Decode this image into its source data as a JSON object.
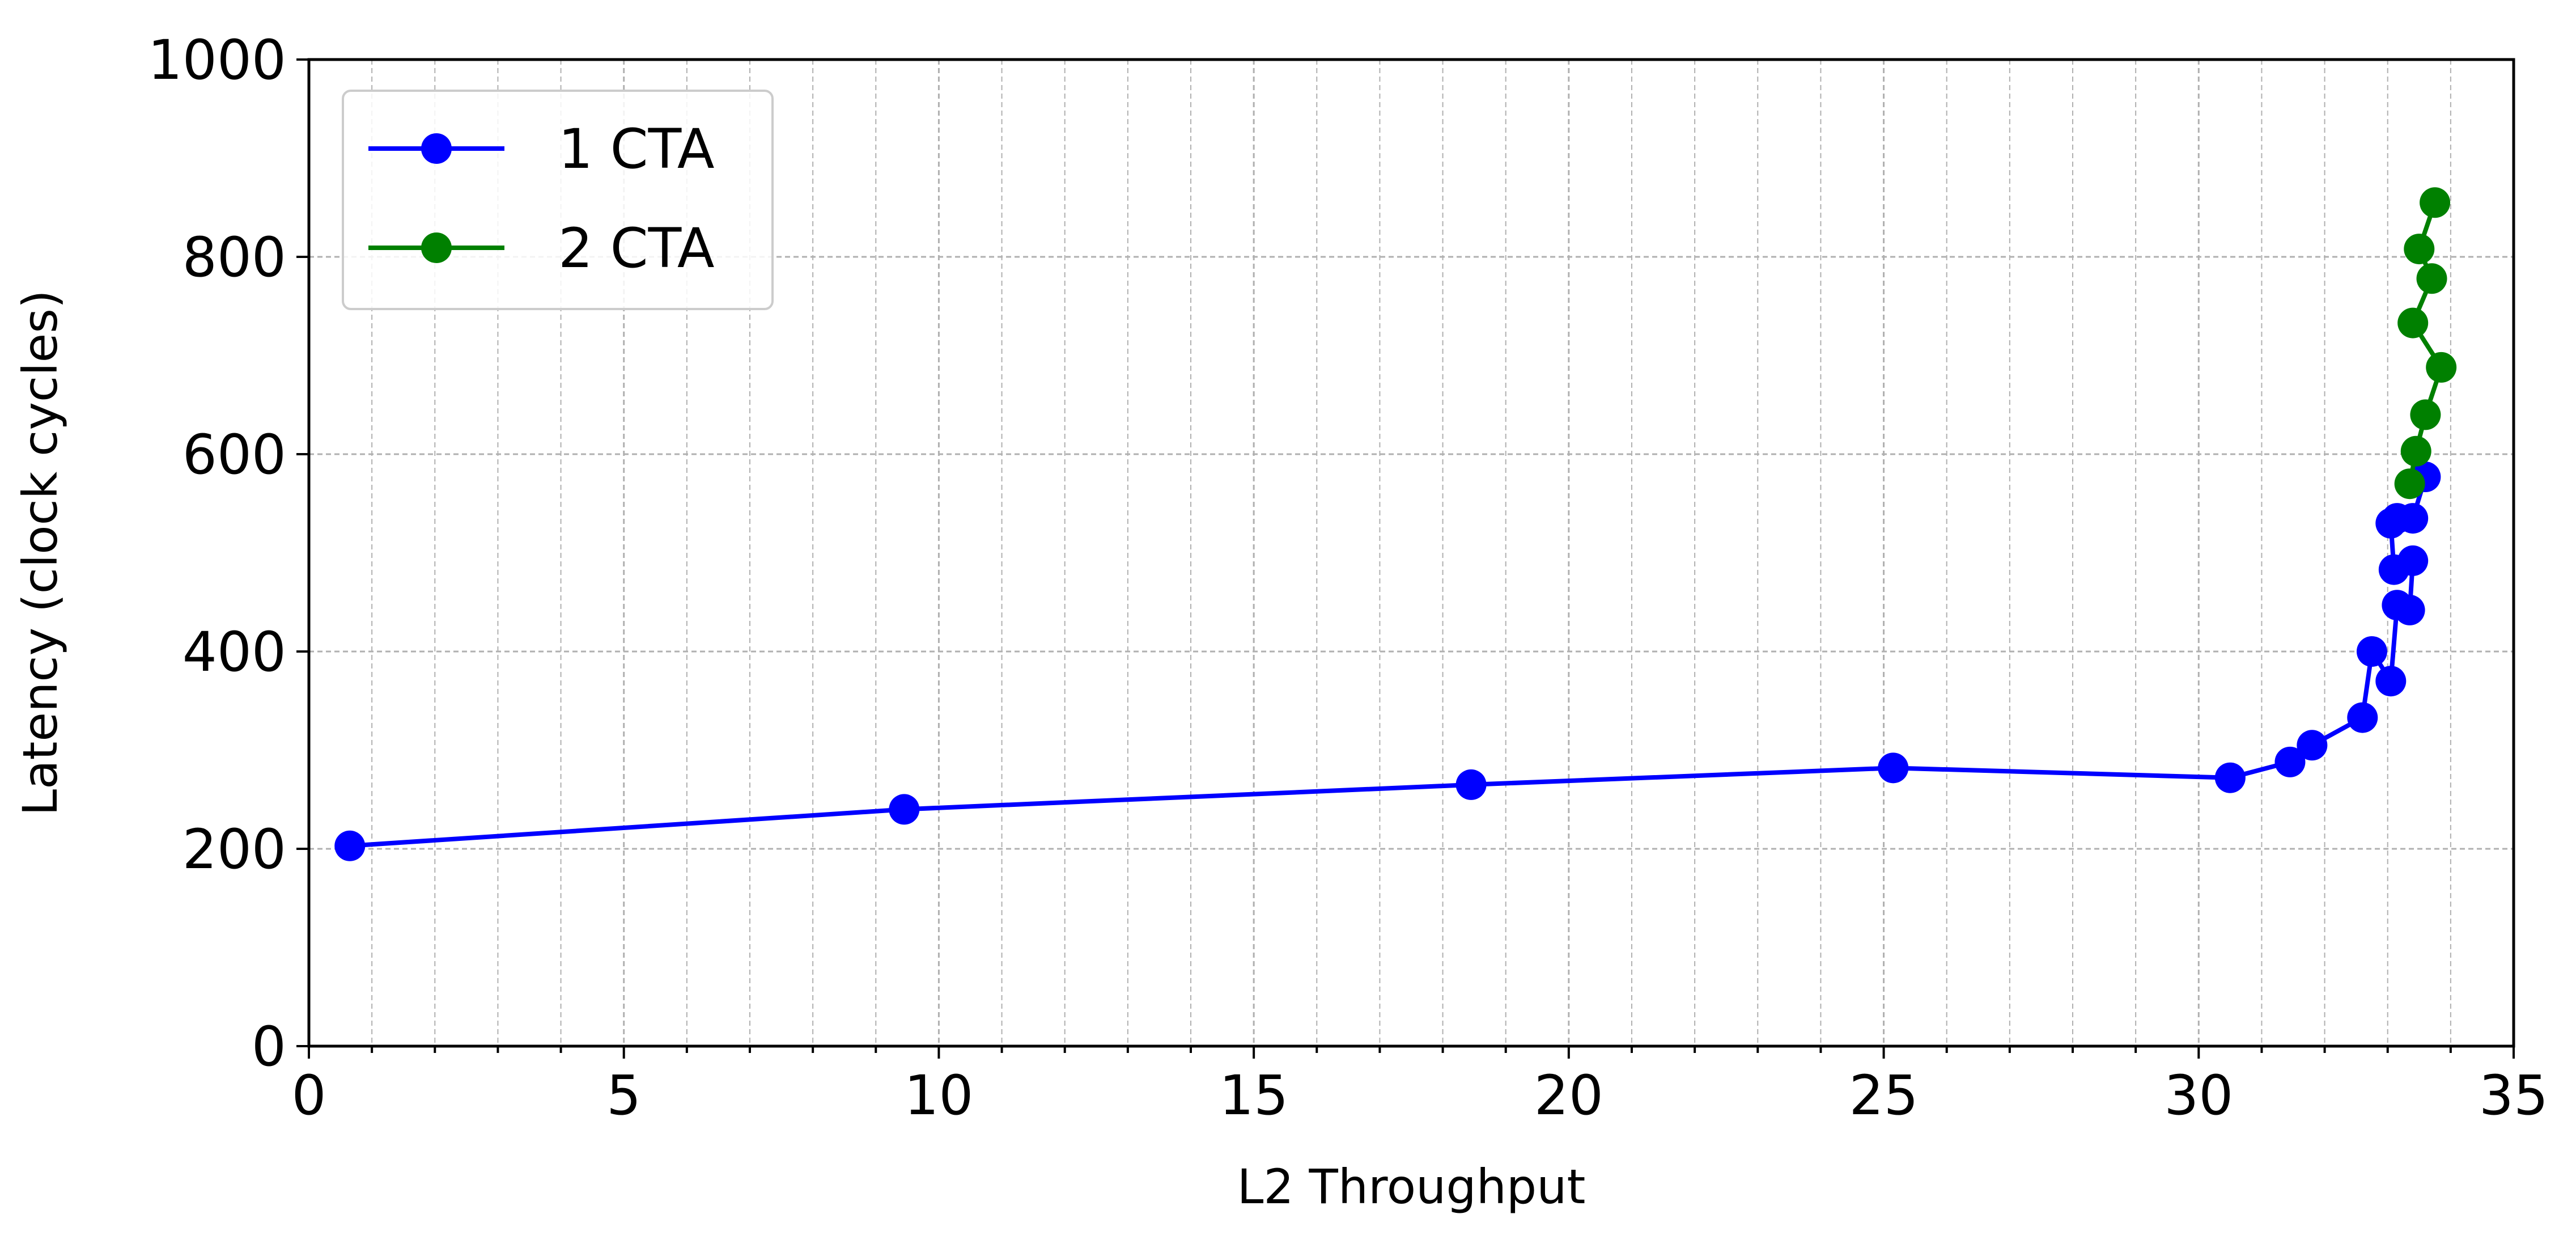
{
  "chart_data": {
    "type": "line",
    "title": "",
    "xlabel": "L2 Throughput",
    "ylabel": "Latency (clock cycles)",
    "xlim": [
      0,
      35
    ],
    "ylim": [
      0,
      1000
    ],
    "xticks": [
      0,
      5,
      10,
      15,
      20,
      25,
      30,
      35
    ],
    "yticks": [
      0,
      200,
      400,
      600,
      800,
      1000
    ],
    "grid": "major and minor, dashed, gray",
    "legend": "top-left",
    "series": [
      {
        "name": "1 CTA",
        "color": "#0000ff",
        "marker": "circle",
        "x": [
          0.65,
          9.45,
          18.45,
          25.15,
          30.5,
          31.45,
          31.8,
          32.6,
          32.75,
          33.05,
          33.15,
          33.35,
          33.4,
          33.1,
          33.05,
          33.15,
          33.4,
          33.6
        ],
        "y": [
          203,
          240,
          265,
          282,
          272,
          288,
          305,
          333,
          400,
          370,
          447,
          442,
          492,
          483,
          530,
          535,
          535,
          577
        ]
      },
      {
        "name": "2 CTA",
        "color": "#008000",
        "marker": "circle",
        "x": [
          33.35,
          33.45,
          33.6,
          33.85,
          33.4,
          33.7,
          33.5,
          33.75
        ],
        "y": [
          570,
          603,
          640,
          688,
          733,
          778,
          808,
          855
        ]
      }
    ]
  }
}
